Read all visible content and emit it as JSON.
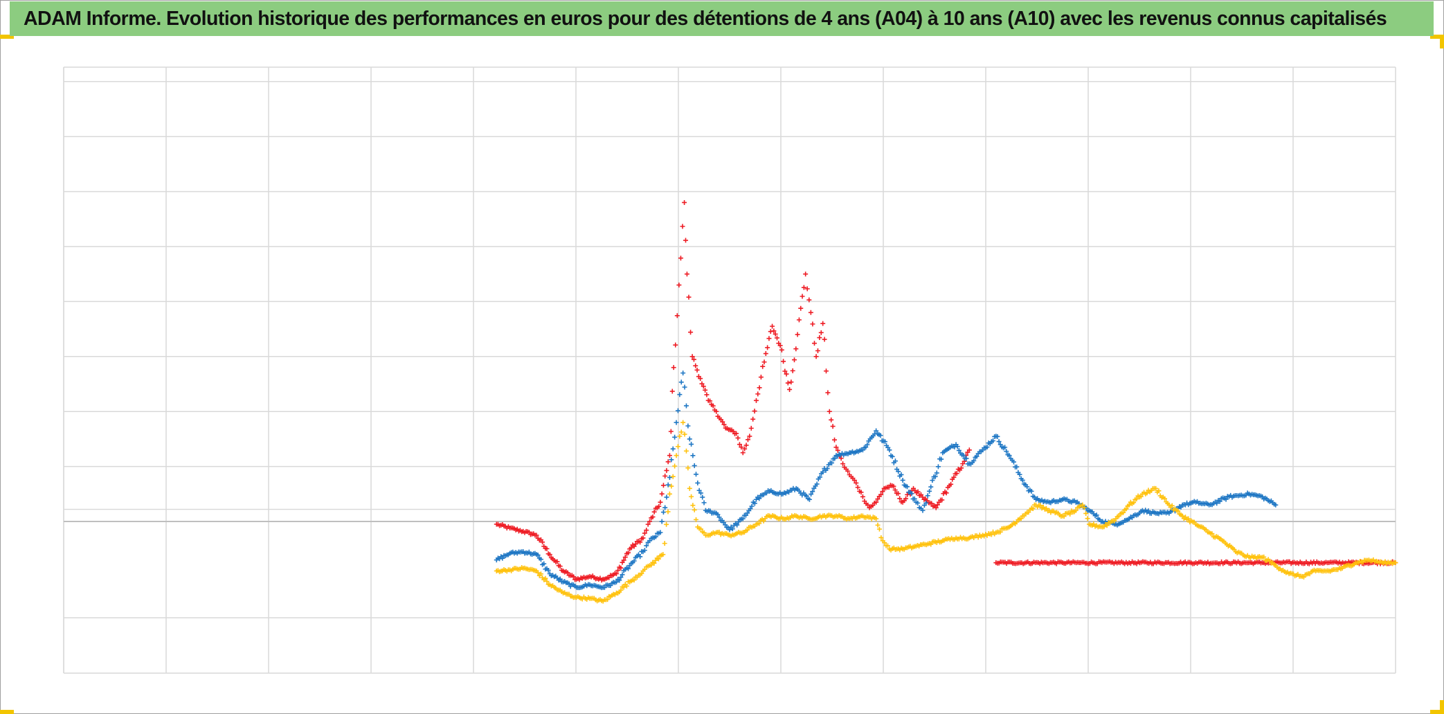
{
  "title": "ADAM Informe. Evolution historique des performances en euros pour des détentions de 4 ans (A04) à 10 ans (A10) avec les revenus connus capitalisés",
  "colors": {
    "title_background": "#8ccc80",
    "corner_marks": "#f2c500",
    "gridline": "#d9d9d9",
    "baseline": "#bfbfbf",
    "red_series": "#ee1c24",
    "blue_series": "#1f77c4",
    "yellow_series": "#ffc20e"
  },
  "chart_data": {
    "type": "scatter",
    "marker": "plus",
    "title": "ADAM Informe. Evolution historique des performances en euros pour des détentions de 4 ans (A04) à 10 ans (A10) avec les revenus connus capitalisés",
    "xlabel": "",
    "ylabel": "",
    "x_tick_labels": [],
    "y_tick_labels": [],
    "x_unit_note": "x in fractions of the plotted horizontal range (no tick labels shown)",
    "y_unit_note": "y relative to the zero line in gridline steps (no tick labels shown)",
    "xlim": [
      0,
      1
    ],
    "ylim": [
      -2.75,
      8.25
    ],
    "x_gridlines": 13,
    "y_gridlines": [
      8,
      7,
      6,
      5,
      4,
      3,
      2,
      1,
      0.22,
      -1.75
    ],
    "zero_line": 0,
    "grid": true,
    "legend": "none",
    "series": [
      {
        "color": "#ee1c24",
        "points": [
          [
            0.325,
            -0.05
          ],
          [
            0.335,
            -0.12
          ],
          [
            0.345,
            -0.18
          ],
          [
            0.355,
            -0.25
          ],
          [
            0.365,
            -0.6
          ],
          [
            0.375,
            -0.9
          ],
          [
            0.385,
            -1.05
          ],
          [
            0.395,
            -1.0
          ],
          [
            0.405,
            -1.05
          ],
          [
            0.415,
            -0.95
          ],
          [
            0.425,
            -0.5
          ],
          [
            0.435,
            -0.3
          ],
          [
            0.44,
            0.0
          ],
          [
            0.448,
            0.35
          ],
          [
            0.455,
            1.2
          ],
          [
            0.458,
            2.8
          ],
          [
            0.462,
            4.3
          ],
          [
            0.466,
            5.8
          ],
          [
            0.468,
            4.5
          ],
          [
            0.472,
            3.0
          ],
          [
            0.478,
            2.6
          ],
          [
            0.484,
            2.2
          ],
          [
            0.49,
            2.0
          ],
          [
            0.497,
            1.7
          ],
          [
            0.505,
            1.6
          ],
          [
            0.51,
            1.25
          ],
          [
            0.515,
            1.55
          ],
          [
            0.52,
            2.2
          ],
          [
            0.526,
            2.9
          ],
          [
            0.532,
            3.55
          ],
          [
            0.538,
            3.2
          ],
          [
            0.545,
            2.4
          ],
          [
            0.551,
            3.4
          ],
          [
            0.557,
            4.5
          ],
          [
            0.561,
            3.8
          ],
          [
            0.565,
            3.0
          ],
          [
            0.57,
            3.6
          ],
          [
            0.575,
            2.0
          ],
          [
            0.58,
            1.35
          ],
          [
            0.585,
            1.05
          ],
          [
            0.59,
            0.85
          ],
          [
            0.595,
            0.7
          ],
          [
            0.6,
            0.45
          ],
          [
            0.605,
            0.25
          ],
          [
            0.61,
            0.35
          ],
          [
            0.616,
            0.6
          ],
          [
            0.622,
            0.65
          ],
          [
            0.63,
            0.35
          ],
          [
            0.638,
            0.6
          ],
          [
            0.646,
            0.4
          ],
          [
            0.655,
            0.25
          ],
          [
            0.665,
            0.65
          ],
          [
            0.675,
            1.05
          ],
          [
            0.68,
            1.3
          ]
        ]
      },
      {
        "color": "#ee1c24",
        "points": [
          [
            0.7,
            -0.75
          ],
          [
            0.75,
            -0.75
          ],
          [
            0.8,
            -0.75
          ],
          [
            0.85,
            -0.75
          ],
          [
            0.9,
            -0.75
          ],
          [
            0.95,
            -0.75
          ],
          [
            1.0,
            -0.75
          ]
        ]
      },
      {
        "color": "#1f77c4",
        "points": [
          [
            0.325,
            -0.7
          ],
          [
            0.335,
            -0.58
          ],
          [
            0.345,
            -0.55
          ],
          [
            0.355,
            -0.6
          ],
          [
            0.365,
            -0.95
          ],
          [
            0.375,
            -1.1
          ],
          [
            0.385,
            -1.2
          ],
          [
            0.395,
            -1.15
          ],
          [
            0.405,
            -1.2
          ],
          [
            0.415,
            -1.1
          ],
          [
            0.425,
            -0.8
          ],
          [
            0.435,
            -0.55
          ],
          [
            0.44,
            -0.35
          ],
          [
            0.448,
            -0.2
          ],
          [
            0.455,
            0.8
          ],
          [
            0.46,
            1.8
          ],
          [
            0.465,
            2.7
          ],
          [
            0.47,
            1.5
          ],
          [
            0.476,
            0.7
          ],
          [
            0.482,
            0.2
          ],
          [
            0.49,
            0.15
          ],
          [
            0.5,
            -0.15
          ],
          [
            0.51,
            0.05
          ],
          [
            0.52,
            0.4
          ],
          [
            0.53,
            0.55
          ],
          [
            0.54,
            0.5
          ],
          [
            0.55,
            0.6
          ],
          [
            0.56,
            0.4
          ],
          [
            0.57,
            0.9
          ],
          [
            0.58,
            1.2
          ],
          [
            0.59,
            1.25
          ],
          [
            0.6,
            1.3
          ],
          [
            0.61,
            1.65
          ],
          [
            0.62,
            1.3
          ],
          [
            0.63,
            0.75
          ],
          [
            0.64,
            0.35
          ],
          [
            0.645,
            0.2
          ],
          [
            0.65,
            0.55
          ],
          [
            0.66,
            1.25
          ],
          [
            0.67,
            1.4
          ],
          [
            0.68,
            1.05
          ],
          [
            0.69,
            1.3
          ],
          [
            0.7,
            1.55
          ],
          [
            0.71,
            1.2
          ],
          [
            0.72,
            0.75
          ],
          [
            0.73,
            0.4
          ],
          [
            0.74,
            0.35
          ],
          [
            0.75,
            0.4
          ],
          [
            0.76,
            0.35
          ],
          [
            0.77,
            0.2
          ],
          [
            0.78,
            0.0
          ],
          [
            0.79,
            -0.05
          ],
          [
            0.8,
            0.05
          ],
          [
            0.81,
            0.2
          ],
          [
            0.82,
            0.15
          ],
          [
            0.83,
            0.15
          ],
          [
            0.84,
            0.3
          ],
          [
            0.85,
            0.35
          ],
          [
            0.86,
            0.3
          ],
          [
            0.875,
            0.45
          ],
          [
            0.89,
            0.5
          ],
          [
            0.9,
            0.45
          ],
          [
            0.91,
            0.3
          ]
        ]
      },
      {
        "color": "#ffc20e",
        "points": [
          [
            0.325,
            -0.9
          ],
          [
            0.335,
            -0.88
          ],
          [
            0.345,
            -0.85
          ],
          [
            0.355,
            -0.9
          ],
          [
            0.365,
            -1.15
          ],
          [
            0.375,
            -1.3
          ],
          [
            0.385,
            -1.38
          ],
          [
            0.395,
            -1.4
          ],
          [
            0.405,
            -1.45
          ],
          [
            0.415,
            -1.3
          ],
          [
            0.425,
            -1.1
          ],
          [
            0.435,
            -0.9
          ],
          [
            0.44,
            -0.8
          ],
          [
            0.45,
            -0.6
          ],
          [
            0.455,
            0.5
          ],
          [
            0.46,
            1.2
          ],
          [
            0.465,
            1.8
          ],
          [
            0.47,
            0.6
          ],
          [
            0.476,
            -0.1
          ],
          [
            0.482,
            -0.25
          ],
          [
            0.49,
            -0.2
          ],
          [
            0.5,
            -0.25
          ],
          [
            0.51,
            -0.2
          ],
          [
            0.52,
            -0.05
          ],
          [
            0.53,
            0.1
          ],
          [
            0.54,
            0.05
          ],
          [
            0.55,
            0.1
          ],
          [
            0.56,
            0.05
          ],
          [
            0.57,
            0.1
          ],
          [
            0.58,
            0.1
          ],
          [
            0.59,
            0.05
          ],
          [
            0.6,
            0.1
          ],
          [
            0.61,
            0.05
          ],
          [
            0.615,
            -0.35
          ],
          [
            0.62,
            -0.5
          ],
          [
            0.63,
            -0.5
          ],
          [
            0.64,
            -0.45
          ],
          [
            0.65,
            -0.4
          ],
          [
            0.66,
            -0.35
          ],
          [
            0.67,
            -0.3
          ],
          [
            0.68,
            -0.3
          ],
          [
            0.69,
            -0.25
          ],
          [
            0.7,
            -0.2
          ],
          [
            0.71,
            -0.1
          ],
          [
            0.72,
            0.1
          ],
          [
            0.73,
            0.3
          ],
          [
            0.74,
            0.2
          ],
          [
            0.75,
            0.1
          ],
          [
            0.76,
            0.2
          ],
          [
            0.765,
            0.3
          ],
          [
            0.77,
            -0.05
          ],
          [
            0.78,
            -0.1
          ],
          [
            0.79,
            0.05
          ],
          [
            0.8,
            0.3
          ],
          [
            0.81,
            0.5
          ],
          [
            0.82,
            0.6
          ],
          [
            0.83,
            0.3
          ],
          [
            0.84,
            0.1
          ],
          [
            0.85,
            -0.05
          ],
          [
            0.86,
            -0.2
          ],
          [
            0.87,
            -0.35
          ],
          [
            0.88,
            -0.55
          ],
          [
            0.89,
            -0.65
          ],
          [
            0.9,
            -0.65
          ],
          [
            0.91,
            -0.8
          ],
          [
            0.92,
            -0.95
          ],
          [
            0.93,
            -1.0
          ],
          [
            0.94,
            -0.9
          ],
          [
            0.95,
            -0.9
          ],
          [
            0.96,
            -0.85
          ],
          [
            0.97,
            -0.75
          ],
          [
            0.98,
            -0.7
          ],
          [
            0.99,
            -0.75
          ],
          [
            1.0,
            -0.75
          ]
        ]
      }
    ]
  }
}
